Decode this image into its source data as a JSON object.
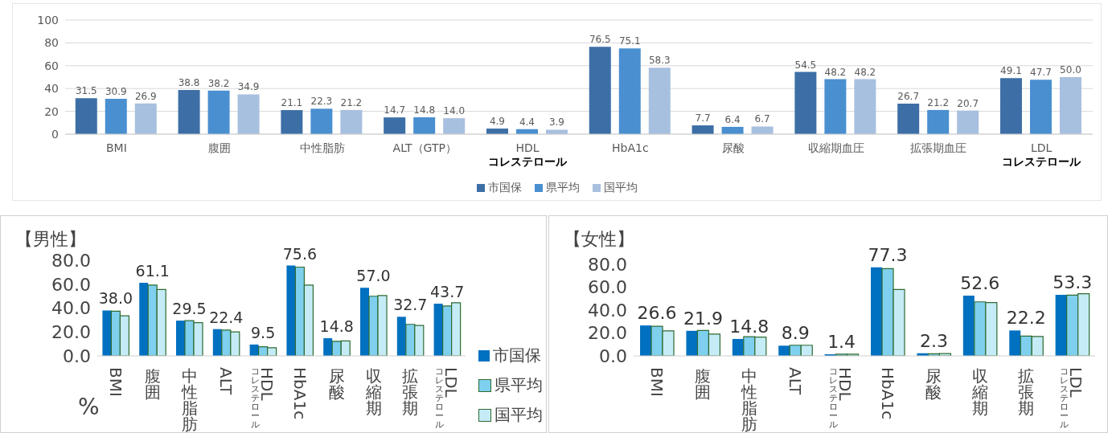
{
  "chart_data": [
    {
      "type": "bar",
      "categories": [
        "BMI",
        "腹囲",
        "中性脂肪",
        "ALT（GTP）",
        "HDL\nコレステロール",
        "HbA1c",
        "尿酸",
        "収縮期血圧",
        "拡張期血圧",
        "LDL\nコレステロール"
      ],
      "ylim": [
        0,
        100
      ],
      "yticks": [
        0,
        20,
        40,
        60,
        80,
        100
      ],
      "grid": "y",
      "legend": "bottom",
      "series": [
        {
          "name": "市国保",
          "color": "#3d6fa6",
          "values": [
            31.5,
            38.8,
            21.1,
            14.7,
            4.9,
            76.5,
            7.7,
            54.5,
            26.7,
            49.1
          ],
          "value_labels": [
            "31.5",
            "38.8",
            "21.1",
            "14.7",
            "4.9",
            "76.5",
            "7.7",
            "54.5",
            "26.7",
            "49.1"
          ]
        },
        {
          "name": "県平均",
          "color": "#4a8fd0",
          "values": [
            30.9,
            38.2,
            22.3,
            14.8,
            4.4,
            75.1,
            6.4,
            48.2,
            21.2,
            47.7
          ],
          "value_labels": [
            "30.9",
            "38.2",
            "22.3",
            "14.8",
            "4.4",
            "75.1",
            "6.4",
            "48.2",
            "21.2",
            "47.7"
          ]
        },
        {
          "name": "国平均",
          "color": "#a8c0df",
          "values": [
            26.9,
            34.9,
            21.2,
            14.0,
            3.9,
            58.3,
            6.7,
            48.2,
            20.7,
            50.0
          ],
          "value_labels": [
            "26.9",
            "34.9",
            "21.2",
            "14.0",
            "3.9",
            "58.3",
            "6.7",
            "48.2",
            "20.7",
            "50.0"
          ]
        }
      ]
    },
    {
      "type": "bar",
      "title": "【男性】",
      "annotations": [
        "%"
      ],
      "categories": [
        "BMI",
        "腹囲",
        "中性脂肪",
        "ALT",
        "HDL\nコレステロール",
        "HbA1c",
        "尿酸",
        "収縮期",
        "拡張期",
        "LDL\nコレステロール"
      ],
      "ylim": [
        0,
        80
      ],
      "yticks": [
        {
          "value": 0,
          "label": "0.0"
        },
        {
          "value": 20,
          "label": "20.0"
        },
        {
          "value": 40,
          "label": "40.0"
        },
        {
          "value": 60,
          "label": "60.0"
        },
        {
          "value": 80,
          "label": "80.0"
        }
      ],
      "legend": "bottom right",
      "series": [
        {
          "name": "市国保",
          "color": "#0070c0",
          "values": [
            38.0,
            61.1,
            29.5,
            22.4,
            9.5,
            75.6,
            14.8,
            57.0,
            32.7,
            43.7
          ],
          "value_labels": [
            "38.0",
            "61.1",
            "29.5",
            "22.4",
            "9.5",
            "75.6",
            "14.8",
            "57.0",
            "32.7",
            "43.7"
          ]
        },
        {
          "name": "県平均",
          "color": "#7fcfee",
          "values": [
            37.4,
            59.3,
            29.5,
            21.6,
            7.7,
            74.3,
            12.2,
            49.9,
            26.4,
            41.7
          ]
        },
        {
          "name": "国平均",
          "color": "#c5ebf7",
          "values": [
            33.5,
            55.6,
            27.8,
            20.1,
            6.8,
            59.3,
            12.5,
            50.5,
            25.5,
            44.5
          ]
        }
      ]
    },
    {
      "type": "bar",
      "title": "【女性】",
      "categories": [
        "BMI",
        "腹囲",
        "中性脂肪",
        "ALT",
        "HDL\nコレステロール",
        "HbA1c",
        "尿酸",
        "収縮期",
        "拡張期",
        "LDL\nコレステロール"
      ],
      "ylim": [
        0,
        80
      ],
      "yticks": [
        {
          "value": 0,
          "label": "0.0"
        },
        {
          "value": 20,
          "label": "20.0"
        },
        {
          "value": 40,
          "label": "40.0"
        },
        {
          "value": 60,
          "label": "60.0"
        },
        {
          "value": 80,
          "label": "80.0"
        }
      ],
      "series": [
        {
          "color": "#0070c0",
          "values": [
            26.6,
            21.9,
            14.8,
            8.9,
            1.4,
            77.3,
            2.3,
            52.6,
            22.2,
            53.3
          ],
          "value_labels": [
            "26.6",
            "21.9",
            "14.8",
            "8.9",
            "1.4",
            "77.3",
            "2.3",
            "52.6",
            "22.2",
            "53.3"
          ]
        },
        {
          "color": "#7fcfee",
          "values": [
            25.9,
            22.2,
            16.7,
            9.3,
            1.5,
            76.2,
            1.8,
            47.2,
            17.3,
            53.1
          ]
        },
        {
          "color": "#c5ebf7",
          "values": [
            21.9,
            19.1,
            16.4,
            9.3,
            1.5,
            58.0,
            2.0,
            46.6,
            17.0,
            54.3
          ]
        }
      ]
    }
  ]
}
